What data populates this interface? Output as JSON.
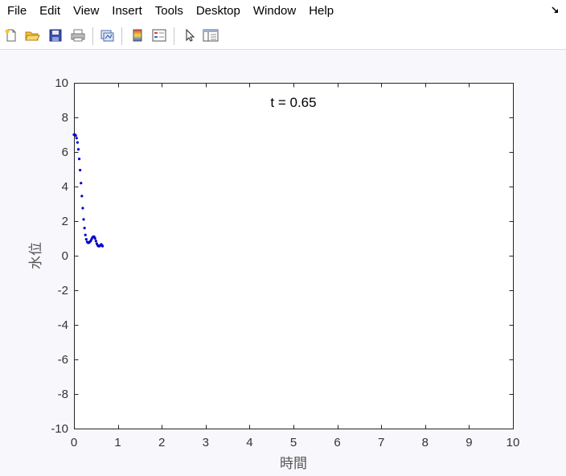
{
  "menu": {
    "items": [
      "File",
      "Edit",
      "View",
      "Insert",
      "Tools",
      "Desktop",
      "Window",
      "Help"
    ]
  },
  "toolbar": {
    "icons": [
      "new-figure-icon",
      "open-folder-icon",
      "save-icon",
      "print-icon",
      "link-plot-icon",
      "colorbar-icon",
      "legend-icon",
      "pointer-icon",
      "property-editor-icon"
    ]
  },
  "chart_data": {
    "type": "scatter",
    "title": "t = 0.65",
    "xlabel": "時間",
    "ylabel": "水位",
    "xlim": [
      0,
      10
    ],
    "ylim": [
      -10,
      10
    ],
    "xticks": [
      0,
      1,
      2,
      3,
      4,
      5,
      6,
      7,
      8,
      9,
      10
    ],
    "yticks": [
      10,
      8,
      6,
      4,
      2,
      0,
      -2,
      -4,
      -6,
      -8,
      -10
    ],
    "grid": false,
    "series": [
      {
        "color": "#0000cc",
        "x": [
          0.0,
          0.02,
          0.04,
          0.06,
          0.08,
          0.1,
          0.12,
          0.14,
          0.16,
          0.18,
          0.2,
          0.22,
          0.24,
          0.26,
          0.28,
          0.3,
          0.32,
          0.34,
          0.36,
          0.38,
          0.4,
          0.42,
          0.44,
          0.46,
          0.48,
          0.5,
          0.52,
          0.54,
          0.56,
          0.58,
          0.6,
          0.62,
          0.64,
          0.65
        ],
        "y": [
          7.0,
          7.0,
          6.95,
          6.8,
          6.55,
          6.15,
          5.6,
          4.95,
          4.2,
          3.45,
          2.75,
          2.1,
          1.6,
          1.2,
          0.95,
          0.8,
          0.75,
          0.75,
          0.8,
          0.85,
          0.95,
          1.05,
          1.1,
          1.1,
          1.0,
          0.85,
          0.7,
          0.6,
          0.55,
          0.55,
          0.6,
          0.65,
          0.6,
          0.55
        ]
      }
    ]
  }
}
